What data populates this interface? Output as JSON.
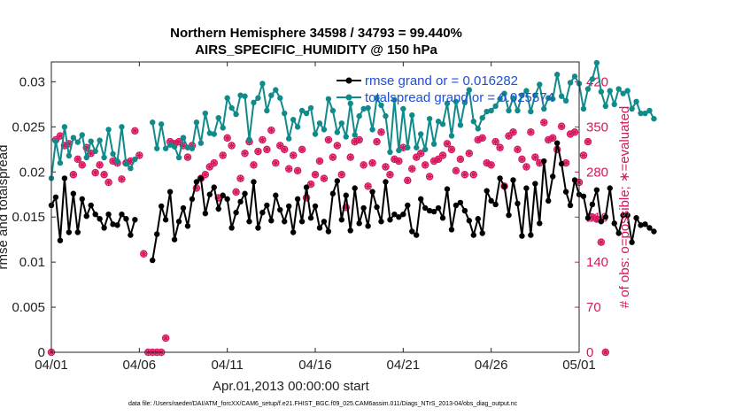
{
  "chart_data": {
    "type": "line",
    "title": "Northern Hemisphere 34598 / 34793 = 99.440%",
    "subtitle": "AIRS_SPECIFIC_HUMIDITY @ 150 hPa",
    "xlabel": "Apr.01,2013 00:00:00 start",
    "ylabel_left": "rmse and totalspread",
    "ylabel_right": "# of obs: o=possible; ∗=evaluated",
    "footer": "data file: /Users/raeder/DAI/ATM_forcXX/CAM6_setup/f.e21.FHIST_BGC.f09_025.CAM6assim.011/Diags_NTrS_2013-04/obs_diag_output.nc",
    "x_ticks": [
      {
        "label": "04/01",
        "day": 0
      },
      {
        "label": "04/06",
        "day": 5
      },
      {
        "label": "04/11",
        "day": 10
      },
      {
        "label": "04/16",
        "day": 15
      },
      {
        "label": "04/21",
        "day": 20
      },
      {
        "label": "04/26",
        "day": 25
      },
      {
        "label": "05/01",
        "day": 30
      }
    ],
    "xlim": [
      0,
      30
    ],
    "ylim_left": [
      0,
      0.0322
    ],
    "yticks_left": [
      "0",
      "0.005",
      "0.01",
      "0.015",
      "0.02",
      "0.025",
      "0.03"
    ],
    "ylim_right": [
      0,
      451
    ],
    "yticks_right": [
      "0",
      "70",
      "140",
      "210",
      "280",
      "350",
      "420"
    ],
    "legend": {
      "position": "top-right"
    },
    "series": [
      {
        "name": "rmse",
        "legend_label": "rmse grand or = 0.016282",
        "color": "#000000",
        "axis": "left",
        "marker": "filled-circle",
        "segments": [
          {
            "start_day": 0,
            "values": [
              0.0163,
              0.0172,
              0.0124,
              0.0193,
              0.0133,
              0.0176,
              0.0133,
              0.017,
              0.0151,
              0.0163,
              0.0153,
              0.0148,
              0.0138,
              0.0153,
              0.0142,
              0.0141,
              0.0153,
              0.0148,
              0.013,
              0.0147
            ]
          },
          {
            "start_day": 5.75,
            "values": [
              0.0102,
              0.0131,
              0.0162,
              0.0147,
              0.0178,
              0.0125,
              0.0145,
              0.016,
              0.014,
              0.017,
              0.0189,
              0.0193,
              0.0154,
              0.0175,
              0.0183,
              0.0159,
              0.0174,
              0.017,
              0.0138,
              0.0155,
              0.0167,
              0.0176,
              0.0145,
              0.0189,
              0.0138,
              0.0155,
              0.0163,
              0.0146,
              0.0174,
              0.0158,
              0.0145,
              0.0162,
              0.0133,
              0.017,
              0.0145,
              0.0183,
              0.0149,
              0.0162,
              0.0138,
              0.0145,
              0.0134,
              0.0176,
              0.019,
              0.0147,
              0.0174,
              0.0135,
              0.0182,
              0.0143,
              0.016,
              0.014,
              0.0178,
              0.0161,
              0.0145,
              0.0189,
              0.0147,
              0.0153,
              0.015,
              0.0153,
              0.0163,
              0.0134,
              0.013,
              0.017,
              0.016,
              0.0157,
              0.0156,
              0.016,
              0.0149,
              0.0181,
              0.0136,
              0.0163,
              0.0166,
              0.0157,
              0.0146,
              0.013,
              0.0148,
              0.0132,
              0.0179,
              0.0168,
              0.0164,
              0.0193,
              0.0184,
              0.0152,
              0.0191,
              0.0165,
              0.0129,
              0.0182,
              0.013,
              0.0187,
              0.0143,
              0.0212,
              0.0168,
              0.0195,
              0.0232,
              0.0209,
              0.0178,
              0.0163,
              0.0191,
              0.0175,
              0.0173,
              0.0149,
              0.0164,
              0.018,
              0.0145,
              0.015,
              0.0182,
              0.0143,
              0.0132,
              0.0152,
              0.0152,
              0.0122,
              0.0149,
              0.0141,
              0.0142,
              0.0138,
              0.0134
            ]
          }
        ]
      },
      {
        "name": "totalspread",
        "legend_label": "totalspread grand or = 0.025574",
        "color": "#118a8a",
        "axis": "left",
        "marker": "filled-circle",
        "segments": [
          {
            "start_day": 0,
            "values": [
              0.0193,
              0.0234,
              0.021,
              0.025,
              0.0218,
              0.0238,
              0.0233,
              0.0241,
              0.0216,
              0.0234,
              0.0223,
              0.0235,
              0.0216,
              0.0247,
              0.022,
              0.0212,
              0.025,
              0.0209,
              0.0204,
              0.0214
            ]
          },
          {
            "start_day": 5.75,
            "values": [
              0.0255,
              0.0226,
              0.0253,
              0.0226,
              0.023,
              0.0228,
              0.0216,
              0.0238,
              0.0227,
              0.0226,
              0.0255,
              0.0232,
              0.0265,
              0.0243,
              0.0242,
              0.026,
              0.0249,
              0.0282,
              0.0271,
              0.0264,
              0.0285,
              0.0284,
              0.0236,
              0.0277,
              0.0282,
              0.0298,
              0.0268,
              0.0285,
              0.0291,
              0.0282,
              0.0265,
              0.0237,
              0.0258,
              0.025,
              0.0268,
              0.0265,
              0.0271,
              0.0242,
              0.0254,
              0.0247,
              0.0281,
              0.0268,
              0.0244,
              0.0254,
              0.0239,
              0.0276,
              0.0241,
              0.0262,
              0.027,
              0.0271,
              0.0247,
              0.0282,
              0.0274,
              0.0262,
              0.0222,
              0.028,
              0.0224,
              0.027,
              0.0227,
              0.0263,
              0.0227,
              0.0242,
              0.0225,
              0.0259,
              0.0231,
              0.0256,
              0.0253,
              0.0276,
              0.024,
              0.0278,
              0.0252,
              0.0277,
              0.0291,
              0.0256,
              0.0248,
              0.026,
              0.0267,
              0.0268,
              0.0273,
              0.0281,
              0.0287,
              0.0268,
              0.0282,
              0.0268,
              0.0285,
              0.029,
              0.0267,
              0.0285,
              0.0297,
              0.027,
              0.0282,
              0.0281,
              0.0308,
              0.0284,
              0.0279,
              0.0299,
              0.0306,
              0.0298,
              0.027,
              0.0292,
              0.0303,
              0.0321,
              0.0289,
              0.0273,
              0.029,
              0.0275,
              0.0292,
              0.0287,
              0.029,
              0.027,
              0.0278,
              0.0265,
              0.0265,
              0.0268,
              0.0259
            ]
          }
        ]
      },
      {
        "name": "obs possible",
        "legend_label": "",
        "color": "#d6165f",
        "axis": "right",
        "marker": "open-circle",
        "values": [
          0,
          330,
          336,
          321,
          324,
          276,
          300,
          291,
          318,
          309,
          279,
          291,
          276,
          264,
          297,
          294,
          269,
          294,
          297,
          344,
          306,
          153,
          0,
          0,
          0,
          0,
          22,
          327,
          324,
          327,
          321,
          303,
          321,
          255,
          270,
          276,
          288,
          294,
          240,
          306,
          333,
          321,
          249,
          270,
          309,
          327,
          291,
          312,
          330,
          315,
          345,
          294,
          321,
          315,
          285,
          306,
          282,
          315,
          240,
          261,
          276,
          297,
          270,
          330,
          303,
          321,
          276,
          225,
          303,
          327,
          330,
          291,
          258,
          294,
          327,
          342,
          288,
          276,
          300,
          297,
          318,
          267,
          285,
          303,
          309,
          291,
          273,
          297,
          300,
          306,
          324,
          315,
          282,
          300,
          276,
          309,
          276,
          330,
          333,
          294,
          291,
          327,
          318,
          258,
          336,
          342,
          315,
          300,
          288,
          342,
          303,
          294,
          357,
          330,
          333,
          315,
          351,
          294,
          339,
          342,
          264,
          306,
          327,
          210,
          207,
          171,
          0
        ]
      },
      {
        "name": "obs evaluated",
        "legend_label": "",
        "color": "#d6165f",
        "axis": "right",
        "marker": "asterisk",
        "values": [
          0,
          330,
          336,
          321,
          324,
          276,
          300,
          291,
          318,
          309,
          279,
          291,
          276,
          264,
          297,
          294,
          269,
          294,
          297,
          344,
          306,
          153,
          0,
          0,
          0,
          0,
          22,
          327,
          324,
          327,
          321,
          303,
          321,
          255,
          270,
          276,
          288,
          294,
          240,
          306,
          333,
          321,
          249,
          270,
          309,
          327,
          291,
          312,
          330,
          315,
          345,
          294,
          321,
          315,
          285,
          306,
          282,
          315,
          240,
          261,
          276,
          297,
          270,
          330,
          303,
          321,
          276,
          225,
          303,
          327,
          330,
          291,
          258,
          294,
          327,
          342,
          288,
          276,
          300,
          297,
          318,
          267,
          285,
          303,
          309,
          291,
          273,
          297,
          300,
          306,
          324,
          315,
          282,
          300,
          276,
          309,
          276,
          330,
          333,
          294,
          291,
          327,
          318,
          258,
          336,
          342,
          315,
          300,
          288,
          342,
          303,
          294,
          357,
          330,
          333,
          315,
          351,
          294,
          339,
          342,
          264,
          306,
          327,
          210,
          207,
          171,
          0
        ]
      }
    ]
  }
}
